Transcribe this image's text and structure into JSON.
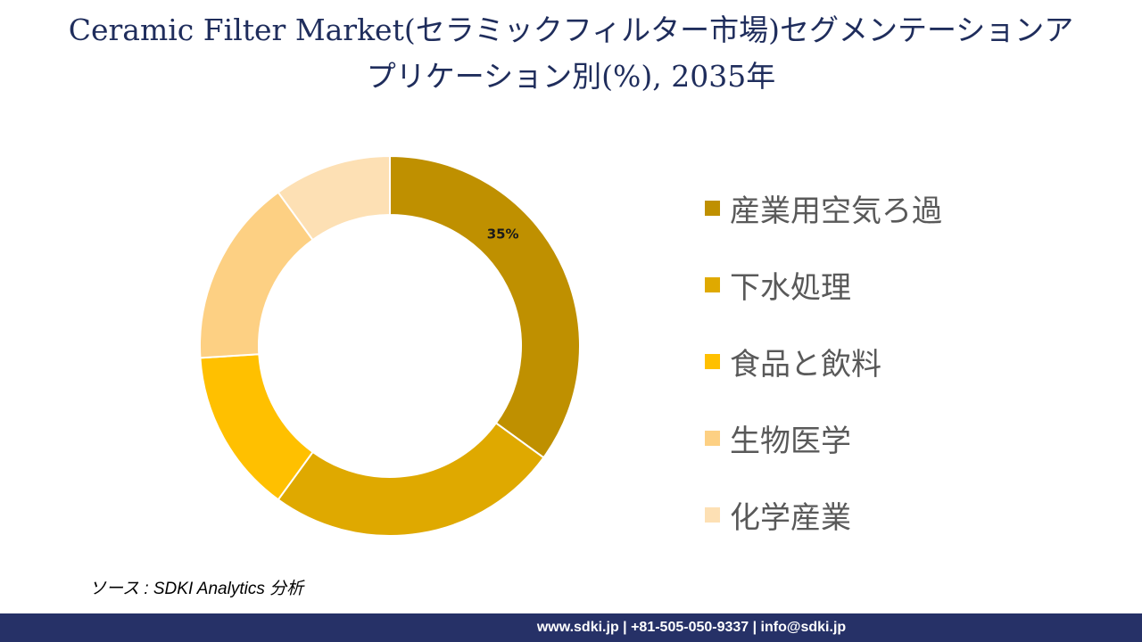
{
  "header": {
    "title_line1": "Ceramic Filter Market(セラミックフィルター市場)セグメンテーションア",
    "title_line2": "プリケーション別(%), 2035年"
  },
  "chart_data": {
    "type": "pie",
    "donut": true,
    "categories": [
      "産業用空気ろ過",
      "下水処理",
      "食品と飲料",
      "生物医学",
      "化学産業"
    ],
    "values": [
      35,
      25,
      14,
      16,
      10
    ],
    "colors": [
      "#bf9000",
      "#dfa900",
      "#ffc000",
      "#fdd083",
      "#fde0b4"
    ],
    "data_labels": [
      "35%",
      "",
      "",
      "",
      ""
    ],
    "legend_position": "right",
    "start_angle_deg": 0,
    "direction": "clockwise"
  },
  "source": {
    "text": "ソース : SDKI Analytics 分析"
  },
  "footer": {
    "contact": "www.sdki.jp | +81-505-050-9337 | info@sdki.jp",
    "background": "#263167"
  }
}
